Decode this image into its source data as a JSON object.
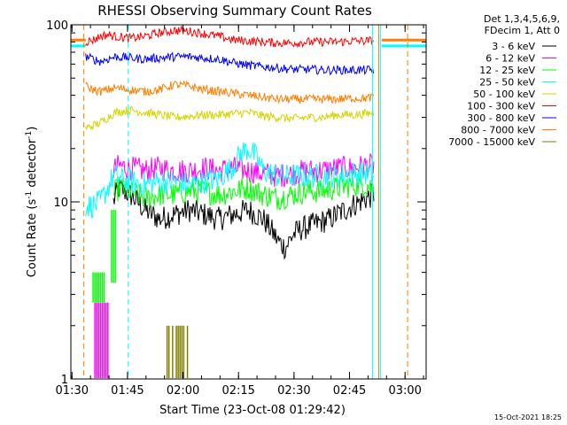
{
  "chart_data": {
    "type": "line",
    "title": "RHESSI Observing Summary Count Rates",
    "xlabel": "Start Time (23-Oct-08 01:29:42)",
    "ylabel_main": "Count Rate (s",
    "ylabel_sup1": "-1",
    "ylabel_mid": " detector",
    "ylabel_sup2": "-1",
    "ylabel_end": ")",
    "x_unit": "minutes since 01:29:42",
    "xlim": [
      0,
      96
    ],
    "ylim": [
      1,
      100
    ],
    "yscale": "log",
    "x_ticks": [
      {
        "label": "01:30",
        "value": 0.3
      },
      {
        "label": "01:45",
        "value": 15.3
      },
      {
        "label": "02:00",
        "value": 30.3
      },
      {
        "label": "02:15",
        "value": 45.3
      },
      {
        "label": "02:30",
        "value": 60.3
      },
      {
        "label": "02:45",
        "value": 75.3
      },
      {
        "label": "03:00",
        "value": 90.3
      }
    ],
    "y_ticks": [
      {
        "label": "1",
        "value": 1
      },
      {
        "label": "10",
        "value": 10
      },
      {
        "label": "100",
        "value": 100
      }
    ],
    "legend_header": [
      "Det 1,3,4,5,6,9,",
      "FDecim 1, Att 0"
    ],
    "series": [
      {
        "name": "3 - 6 keV",
        "color": "#000000",
        "x": [
          11.5,
          13,
          16,
          20,
          24,
          28,
          32,
          36,
          40,
          44,
          48,
          52,
          56,
          58,
          60,
          62,
          66,
          70,
          74,
          78,
          82
        ],
        "y": [
          10,
          12,
          11,
          9,
          8,
          8.5,
          9,
          8.5,
          8,
          8.5,
          9,
          8,
          6,
          5.5,
          6.5,
          7,
          7.5,
          8,
          9,
          10,
          11
        ]
      },
      {
        "name": "6 - 12 keV",
        "color": "#ff00ff",
        "x": [
          11.5,
          13,
          16,
          20,
          24,
          28,
          32,
          36,
          40,
          44,
          48,
          52,
          56,
          60,
          64,
          68,
          72,
          76,
          80,
          82
        ],
        "y": [
          15,
          16,
          15.5,
          15,
          15.5,
          15,
          15,
          15.5,
          15,
          15.5,
          15,
          14.5,
          14,
          14.5,
          15,
          15,
          15.5,
          15.5,
          16,
          16
        ]
      },
      {
        "name": "12 - 25 keV",
        "color": "#00ff00",
        "x": [
          11.5,
          13,
          16,
          20,
          24,
          28,
          32,
          36,
          40,
          44,
          48,
          52,
          56,
          60,
          64,
          68,
          72,
          76,
          80,
          82
        ],
        "y": [
          11,
          12,
          11.5,
          10.5,
          11,
          11,
          11.5,
          11.5,
          11,
          11.5,
          12,
          11,
          10.5,
          11,
          11.5,
          11.5,
          12,
          12.5,
          12.5,
          12
        ]
      },
      {
        "name": "25 - 50 keV",
        "color": "#00ffff",
        "x": [
          4,
          6,
          8,
          10,
          11.5,
          13,
          16,
          20,
          24,
          28,
          32,
          36,
          40,
          44,
          46,
          48,
          50,
          52,
          56,
          60,
          64,
          68,
          72,
          76,
          80,
          82
        ],
        "y": [
          9.5,
          9.5,
          10,
          12,
          14,
          13.5,
          13,
          12.5,
          13,
          13,
          12.5,
          13,
          13.5,
          16,
          19,
          20,
          18,
          15,
          14,
          14,
          14,
          14,
          14,
          14.5,
          14.5,
          14
        ]
      },
      {
        "name": "50 - 100 keV",
        "color": "#d4d400",
        "x": [
          4,
          6,
          8,
          10,
          12,
          16,
          20,
          24,
          28,
          32,
          36,
          40,
          44,
          48,
          52,
          56,
          60,
          64,
          68,
          72,
          76,
          80,
          82
        ],
        "y": [
          26,
          27,
          28,
          30,
          32,
          33,
          32,
          31,
          30,
          30.5,
          31,
          31,
          31.5,
          32,
          30.5,
          30,
          29.5,
          30,
          30,
          31,
          31,
          31.5,
          32
        ]
      },
      {
        "name": "100 - 300 keV",
        "color": "#ff0000",
        "x": [
          4,
          6,
          8,
          10,
          12,
          16,
          20,
          24,
          28,
          32,
          36,
          40,
          44,
          48,
          52,
          56,
          60,
          64,
          68,
          72,
          76,
          80,
          82
        ],
        "y": [
          80,
          82,
          86,
          88,
          86,
          84,
          86,
          90,
          93,
          92,
          89,
          86,
          82,
          81,
          80,
          79,
          79,
          80,
          80,
          80,
          81,
          81,
          82
        ]
      },
      {
        "name": "300 - 800 keV",
        "color": "#0000ff",
        "x": [
          4,
          6,
          8,
          10,
          12,
          16,
          20,
          24,
          28,
          32,
          36,
          40,
          44,
          48,
          52,
          56,
          60,
          64,
          68,
          72,
          76,
          80,
          82
        ],
        "y": [
          66,
          64,
          62,
          64,
          66,
          65,
          64,
          65,
          66,
          66,
          65,
          64,
          61,
          59,
          58,
          57,
          56,
          56,
          55.5,
          55.5,
          55.5,
          55.5,
          55.5
        ]
      },
      {
        "name": "800 - 7000 keV",
        "color": "#ff7f00",
        "x": [
          4,
          6,
          8,
          10,
          12,
          16,
          20,
          24,
          28,
          32,
          36,
          40,
          44,
          48,
          52,
          56,
          60,
          64,
          68,
          72,
          76,
          80,
          82
        ],
        "y": [
          45,
          43,
          42,
          43,
          44,
          43,
          42,
          43,
          46,
          45,
          43,
          42,
          41,
          40,
          39,
          38,
          38,
          38,
          38,
          38,
          38.5,
          38.5,
          39
        ]
      },
      {
        "name": "7000 - 15000 keV",
        "color": "#808000",
        "x": [],
        "y": []
      }
    ],
    "bursts": [
      {
        "series": "6 - 12 keV",
        "x": [
          6.5,
          7,
          7.5,
          8,
          8.5,
          9,
          9.5,
          10
        ],
        "low": 1,
        "high": 2.7
      },
      {
        "series": "12 - 25 keV",
        "x": [
          6,
          6.5,
          7,
          7.5,
          8,
          8.5,
          9
        ],
        "low": 2.7,
        "high": 4
      },
      {
        "series": "12 - 25 keV",
        "x": [
          11,
          11.5,
          12
        ],
        "low": 3.5,
        "high": 9
      },
      {
        "series": "7000 - 15000 keV",
        "x": [
          26,
          26.5,
          27.5,
          28.5,
          29,
          29.5,
          30,
          30.5,
          31.5
        ],
        "low": 1,
        "high": 2
      }
    ],
    "markers": [
      {
        "x": 3.5,
        "color": "#ff7f00",
        "style": "dashed"
      },
      {
        "x": 15.5,
        "color": "#00ffff",
        "style": "dashed"
      },
      {
        "x": 81.5,
        "color": "#00ffff",
        "style": "solid"
      },
      {
        "x": 83.2,
        "color": "#ff7f00",
        "style": "solid"
      },
      {
        "x": 83.7,
        "color": "#00ffff",
        "style": "solid"
      },
      {
        "x": 91.0,
        "color": "#ff7f00",
        "style": "dashed"
      }
    ],
    "side_levels": [
      {
        "x0": 0,
        "x1": 4,
        "y": 82,
        "color": "#ff7f00"
      },
      {
        "x0": 0,
        "x1": 4,
        "y": 76,
        "color": "#00ffff"
      },
      {
        "x0": 84,
        "x1": 96,
        "y": 82,
        "color": "#ff7f00"
      },
      {
        "x0": 84,
        "x1": 96,
        "y": 76,
        "color": "#00ffff"
      }
    ]
  },
  "timestamp": "15-Oct-2021 18:25"
}
